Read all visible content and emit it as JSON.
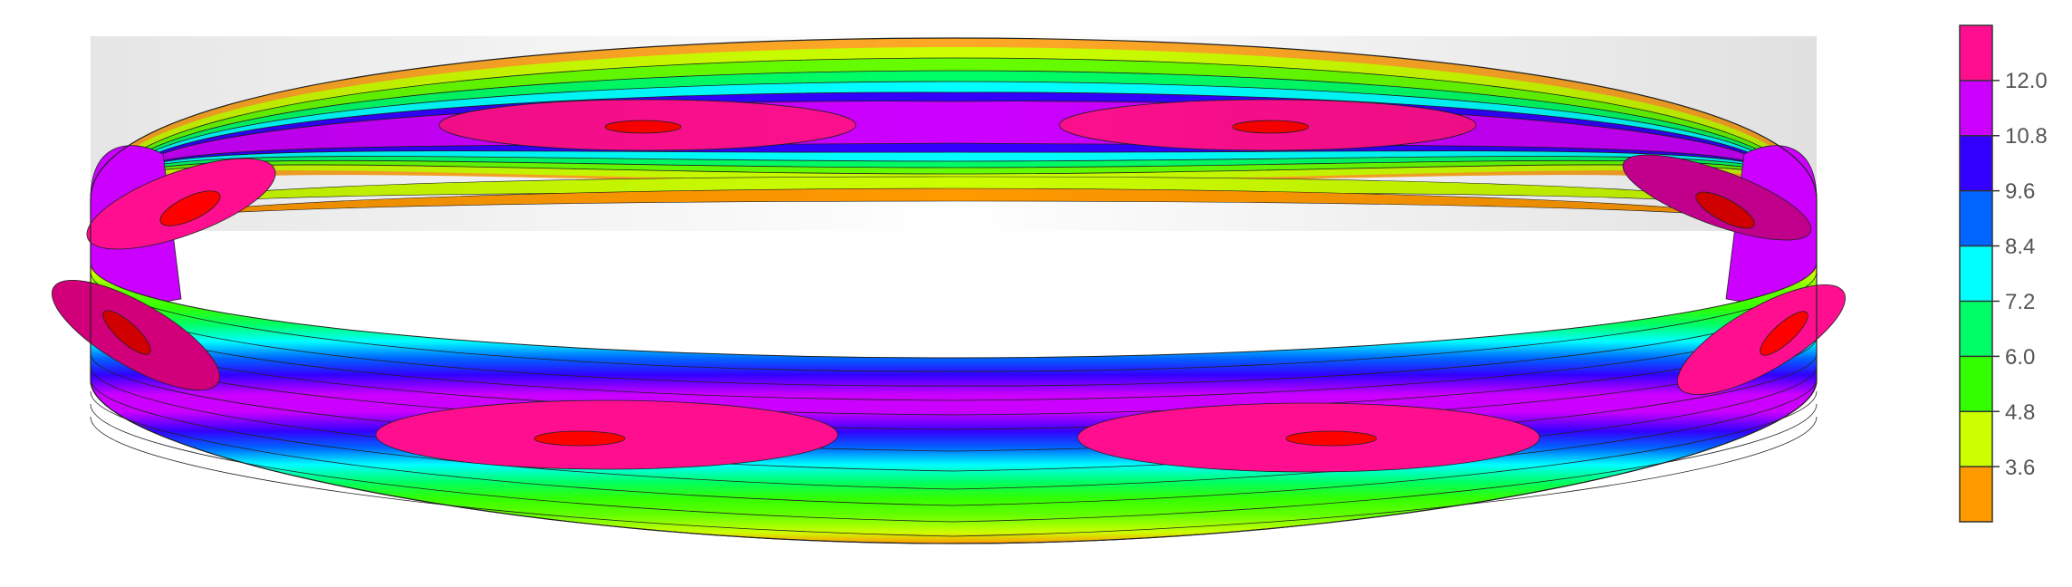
{
  "colorbar": {
    "tick_labels": [
      "12.0",
      "10.8",
      "9.6",
      "8.4",
      "7.2",
      "6.0",
      "4.8",
      "3.6"
    ],
    "bands_top_to_bottom": [
      "#ff0f8f",
      "#cc00ff",
      "#3300ff",
      "#0066ff",
      "#00ffff",
      "#00ff66",
      "#33ff00",
      "#ccff00",
      "#ff9900"
    ]
  },
  "field": {
    "description_levels": [
      2.4,
      3.6,
      4.8,
      6.0,
      7.2,
      8.4,
      9.6,
      10.8,
      12.0,
      13.2
    ],
    "peak_color": "#ff0000",
    "edge_color": "#ff9900"
  }
}
